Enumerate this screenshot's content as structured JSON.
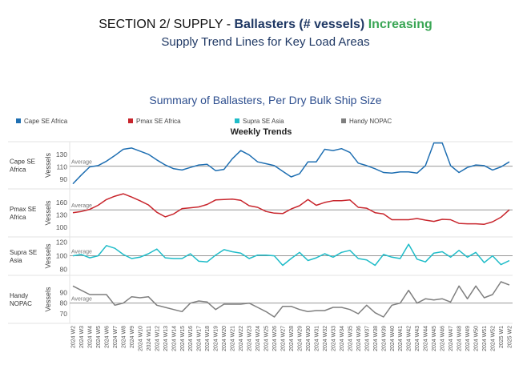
{
  "header": {
    "section": "SECTION 2/ SUPPLY - ",
    "subject": "Ballasters (# vessels)",
    "trend": "Increasing",
    "subtitle": "Supply Trend Lines for Key Load Areas"
  },
  "chart_data": {
    "type": "line",
    "title": "Summary of Ballasters, Per Dry Bulk Ship Size",
    "subtitle": "Weekly Trends",
    "ylabel": "Vessels",
    "reference_label": "Average",
    "legend_position": "top",
    "categories": [
      "2024 W2",
      "2024 W3",
      "2024 W4",
      "2024 W5",
      "2024 W6",
      "2024 W7",
      "2024 W8",
      "2024 W9",
      "2024 W10",
      "2024 W11",
      "2024 W12",
      "2024 W13",
      "2024 W14",
      "2024 W15",
      "2024 W16",
      "2024 W17",
      "2024 W18",
      "2024 W19",
      "2024 W20",
      "2024 W21",
      "2024 W22",
      "2024 W23",
      "2024 W24",
      "2024 W25",
      "2024 W26",
      "2024 W27",
      "2024 W28",
      "2024 W29",
      "2024 W30",
      "2024 W31",
      "2024 W32",
      "2024 W33",
      "2024 W34",
      "2024 W35",
      "2024 W36",
      "2024 W37",
      "2024 W38",
      "2024 W39",
      "2024 W40",
      "2024 W41",
      "2024 W42",
      "2024 W43",
      "2024 W44",
      "2024 W45",
      "2024 W46",
      "2024 W47",
      "2024 W48",
      "2024 W49",
      "2024 W50",
      "2024 W51",
      "2024 W52",
      "2025 W1",
      "2025 W2"
    ],
    "series": [
      {
        "name": "Cape SE Africa",
        "panel_label": "Cape SE\nAfrica",
        "color": "#1f6fb2",
        "ylim": [
          80,
          145
        ],
        "ticks": [
          90,
          110,
          130
        ],
        "average": 111,
        "values": [
          83,
          97,
          110,
          112,
          119,
          128,
          138,
          140,
          135,
          130,
          121,
          113,
          107,
          105,
          109,
          113,
          114,
          104,
          106,
          123,
          136,
          129,
          118,
          115,
          112,
          103,
          94,
          99,
          118,
          118,
          138,
          136,
          139,
          133,
          116,
          112,
          107,
          101,
          100,
          102,
          102,
          100,
          112,
          148,
          148,
          112,
          101,
          109,
          113,
          112,
          105,
          110,
          118
        ]
      },
      {
        "name": "Pmax SE Africa",
        "panel_label": "Pmax SE\nAfrica",
        "color": "#c8252c",
        "ylim": [
          84,
          185
        ],
        "ticks": [
          100,
          130,
          160
        ],
        "average": 142,
        "values": [
          135,
          138,
          143,
          153,
          167,
          175,
          181,
          173,
          164,
          154,
          136,
          125,
          132,
          145,
          147,
          149,
          155,
          166,
          167,
          168,
          165,
          152,
          148,
          138,
          134,
          133,
          144,
          152,
          167,
          153,
          160,
          164,
          164,
          166,
          148,
          146,
          135,
          132,
          118,
          118,
          118,
          121,
          117,
          114,
          119,
          118,
          109,
          108,
          108,
          107,
          113,
          124,
          142
        ]
      },
      {
        "name": "Supra SE Asia",
        "panel_label": "Supra SE\nAsia",
        "color": "#1fbcc8",
        "ylim": [
          76,
          123
        ],
        "ticks": [
          80,
          100,
          120
        ],
        "average": 100,
        "values": [
          100,
          102,
          97,
          100,
          115,
          111,
          102,
          96,
          98,
          103,
          110,
          97,
          96,
          96,
          103,
          92,
          91,
          101,
          109,
          106,
          104,
          96,
          101,
          101,
          100,
          86,
          96,
          105,
          93,
          97,
          103,
          98,
          105,
          108,
          96,
          94,
          86,
          102,
          98,
          96,
          117,
          95,
          91,
          104,
          106,
          98,
          108,
          98,
          105,
          90,
          100,
          87,
          93
        ]
      },
      {
        "name": "Handy NOPAC",
        "panel_label": "Handy\nNOPAC",
        "color": "#7f7f7f",
        "ylim": [
          64,
          103
        ],
        "ticks": [
          70,
          80,
          90
        ],
        "average": 80,
        "values": [
          96,
          92,
          88,
          88,
          88,
          78,
          80,
          86,
          85,
          86,
          78,
          76,
          74,
          72,
          80,
          82,
          81,
          74,
          79,
          79,
          79,
          80,
          76,
          72,
          67,
          77,
          77,
          74,
          72,
          73,
          73,
          76,
          76,
          74,
          70,
          78,
          71,
          67,
          78,
          80,
          92,
          80,
          84,
          83,
          84,
          81,
          96,
          84,
          96,
          85,
          88,
          100,
          97
        ]
      }
    ]
  }
}
